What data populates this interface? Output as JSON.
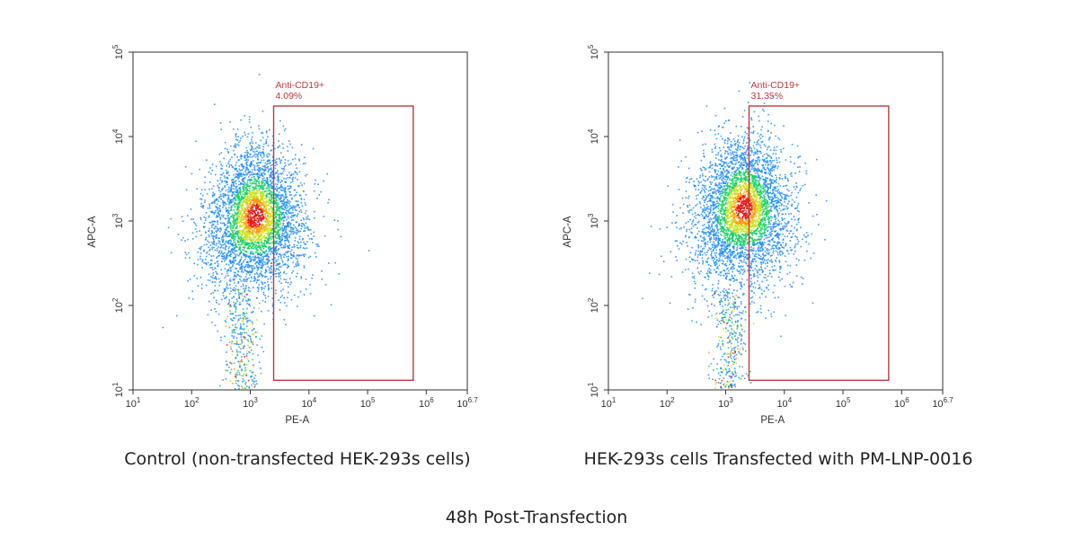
{
  "chart_data": [
    {
      "type": "scatter",
      "style": "density pseudocolor (blue → green → yellow → red)",
      "xlabel": "PE-A",
      "ylabel": "APC-A",
      "x_scale": "log",
      "y_scale": "log",
      "xlim": [
        10,
        5011872
      ],
      "ylim": [
        10,
        100000
      ],
      "xticks": [
        {
          "value": 10,
          "base": "10",
          "exp": "1"
        },
        {
          "value": 100,
          "base": "10",
          "exp": "2"
        },
        {
          "value": 1000,
          "base": "10",
          "exp": "3"
        },
        {
          "value": 10000,
          "base": "10",
          "exp": "4"
        },
        {
          "value": 100000,
          "base": "10",
          "exp": "5"
        },
        {
          "value": 1000000,
          "base": "10",
          "exp": "6"
        },
        {
          "value": 5011872,
          "base": "10",
          "exp": "6.7"
        }
      ],
      "yticks": [
        {
          "value": 10,
          "base": "10",
          "exp": "1"
        },
        {
          "value": 100,
          "base": "10",
          "exp": "2"
        },
        {
          "value": 1000,
          "base": "10",
          "exp": "3"
        },
        {
          "value": 10000,
          "base": "10",
          "exp": "4"
        },
        {
          "value": 100000,
          "base": "10",
          "exp": "5"
        }
      ],
      "population_center": {
        "x": 1200,
        "y": 1200
      },
      "gate": {
        "name": "Anti-CD19+",
        "percent": "4.09%",
        "x_range": [
          2500,
          600000
        ],
        "y_range": [
          13,
          23000
        ],
        "color": "#c0393b"
      },
      "caption": "Control (non-transfected HEK-293s cells)"
    },
    {
      "type": "scatter",
      "style": "density pseudocolor (blue → green → yellow → red)",
      "xlabel": "PE-A",
      "ylabel": "APC-A",
      "x_scale": "log",
      "y_scale": "log",
      "xlim": [
        10,
        5011872
      ],
      "ylim": [
        10,
        100000
      ],
      "xticks": [
        {
          "value": 10,
          "base": "10",
          "exp": "1"
        },
        {
          "value": 100,
          "base": "10",
          "exp": "2"
        },
        {
          "value": 1000,
          "base": "10",
          "exp": "3"
        },
        {
          "value": 10000,
          "base": "10",
          "exp": "4"
        },
        {
          "value": 100000,
          "base": "10",
          "exp": "5"
        },
        {
          "value": 1000000,
          "base": "10",
          "exp": "6"
        },
        {
          "value": 5011872,
          "base": "10",
          "exp": "6.7"
        }
      ],
      "yticks": [
        {
          "value": 10,
          "base": "10",
          "exp": "1"
        },
        {
          "value": 100,
          "base": "10",
          "exp": "2"
        },
        {
          "value": 1000,
          "base": "10",
          "exp": "3"
        },
        {
          "value": 10000,
          "base": "10",
          "exp": "4"
        },
        {
          "value": 100000,
          "base": "10",
          "exp": "5"
        }
      ],
      "population_center": {
        "x": 2000,
        "y": 1500
      },
      "gate": {
        "name": "Anti-CD19+",
        "percent": "31.35%",
        "x_range": [
          2500,
          600000
        ],
        "y_range": [
          13,
          23000
        ],
        "color": "#c0393b"
      },
      "caption": "HEK-293s cells Transfected with PM-LNP-0016"
    }
  ],
  "footer": {
    "caption": "48h Post-Transfection"
  }
}
